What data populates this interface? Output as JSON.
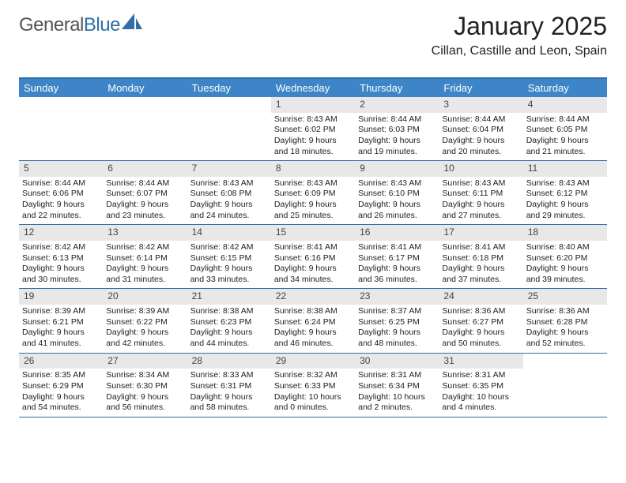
{
  "logo": {
    "word1": "General",
    "word2": "Blue"
  },
  "title": "January 2025",
  "location": "Cillan, Castille and Leon, Spain",
  "colors": {
    "brand_blue": "#2f6ea8",
    "header_bg": "#3d85c6",
    "header_fg": "#ffffff",
    "daynum_bg": "#e8e8e8",
    "text": "#222222"
  },
  "day_names": [
    "Sunday",
    "Monday",
    "Tuesday",
    "Wednesday",
    "Thursday",
    "Friday",
    "Saturday"
  ],
  "weeks": [
    [
      null,
      null,
      null,
      {
        "n": "1",
        "sr": "8:43 AM",
        "ss": "6:02 PM",
        "dl": "9 hours and 18 minutes."
      },
      {
        "n": "2",
        "sr": "8:44 AM",
        "ss": "6:03 PM",
        "dl": "9 hours and 19 minutes."
      },
      {
        "n": "3",
        "sr": "8:44 AM",
        "ss": "6:04 PM",
        "dl": "9 hours and 20 minutes."
      },
      {
        "n": "4",
        "sr": "8:44 AM",
        "ss": "6:05 PM",
        "dl": "9 hours and 21 minutes."
      }
    ],
    [
      {
        "n": "5",
        "sr": "8:44 AM",
        "ss": "6:06 PM",
        "dl": "9 hours and 22 minutes."
      },
      {
        "n": "6",
        "sr": "8:44 AM",
        "ss": "6:07 PM",
        "dl": "9 hours and 23 minutes."
      },
      {
        "n": "7",
        "sr": "8:43 AM",
        "ss": "6:08 PM",
        "dl": "9 hours and 24 minutes."
      },
      {
        "n": "8",
        "sr": "8:43 AM",
        "ss": "6:09 PM",
        "dl": "9 hours and 25 minutes."
      },
      {
        "n": "9",
        "sr": "8:43 AM",
        "ss": "6:10 PM",
        "dl": "9 hours and 26 minutes."
      },
      {
        "n": "10",
        "sr": "8:43 AM",
        "ss": "6:11 PM",
        "dl": "9 hours and 27 minutes."
      },
      {
        "n": "11",
        "sr": "8:43 AM",
        "ss": "6:12 PM",
        "dl": "9 hours and 29 minutes."
      }
    ],
    [
      {
        "n": "12",
        "sr": "8:42 AM",
        "ss": "6:13 PM",
        "dl": "9 hours and 30 minutes."
      },
      {
        "n": "13",
        "sr": "8:42 AM",
        "ss": "6:14 PM",
        "dl": "9 hours and 31 minutes."
      },
      {
        "n": "14",
        "sr": "8:42 AM",
        "ss": "6:15 PM",
        "dl": "9 hours and 33 minutes."
      },
      {
        "n": "15",
        "sr": "8:41 AM",
        "ss": "6:16 PM",
        "dl": "9 hours and 34 minutes."
      },
      {
        "n": "16",
        "sr": "8:41 AM",
        "ss": "6:17 PM",
        "dl": "9 hours and 36 minutes."
      },
      {
        "n": "17",
        "sr": "8:41 AM",
        "ss": "6:18 PM",
        "dl": "9 hours and 37 minutes."
      },
      {
        "n": "18",
        "sr": "8:40 AM",
        "ss": "6:20 PM",
        "dl": "9 hours and 39 minutes."
      }
    ],
    [
      {
        "n": "19",
        "sr": "8:39 AM",
        "ss": "6:21 PM",
        "dl": "9 hours and 41 minutes."
      },
      {
        "n": "20",
        "sr": "8:39 AM",
        "ss": "6:22 PM",
        "dl": "9 hours and 42 minutes."
      },
      {
        "n": "21",
        "sr": "8:38 AM",
        "ss": "6:23 PM",
        "dl": "9 hours and 44 minutes."
      },
      {
        "n": "22",
        "sr": "8:38 AM",
        "ss": "6:24 PM",
        "dl": "9 hours and 46 minutes."
      },
      {
        "n": "23",
        "sr": "8:37 AM",
        "ss": "6:25 PM",
        "dl": "9 hours and 48 minutes."
      },
      {
        "n": "24",
        "sr": "8:36 AM",
        "ss": "6:27 PM",
        "dl": "9 hours and 50 minutes."
      },
      {
        "n": "25",
        "sr": "8:36 AM",
        "ss": "6:28 PM",
        "dl": "9 hours and 52 minutes."
      }
    ],
    [
      {
        "n": "26",
        "sr": "8:35 AM",
        "ss": "6:29 PM",
        "dl": "9 hours and 54 minutes."
      },
      {
        "n": "27",
        "sr": "8:34 AM",
        "ss": "6:30 PM",
        "dl": "9 hours and 56 minutes."
      },
      {
        "n": "28",
        "sr": "8:33 AM",
        "ss": "6:31 PM",
        "dl": "9 hours and 58 minutes."
      },
      {
        "n": "29",
        "sr": "8:32 AM",
        "ss": "6:33 PM",
        "dl": "10 hours and 0 minutes."
      },
      {
        "n": "30",
        "sr": "8:31 AM",
        "ss": "6:34 PM",
        "dl": "10 hours and 2 minutes."
      },
      {
        "n": "31",
        "sr": "8:31 AM",
        "ss": "6:35 PM",
        "dl": "10 hours and 4 minutes."
      },
      null
    ]
  ],
  "labels": {
    "sunrise": "Sunrise:",
    "sunset": "Sunset:",
    "daylight": "Daylight:"
  }
}
